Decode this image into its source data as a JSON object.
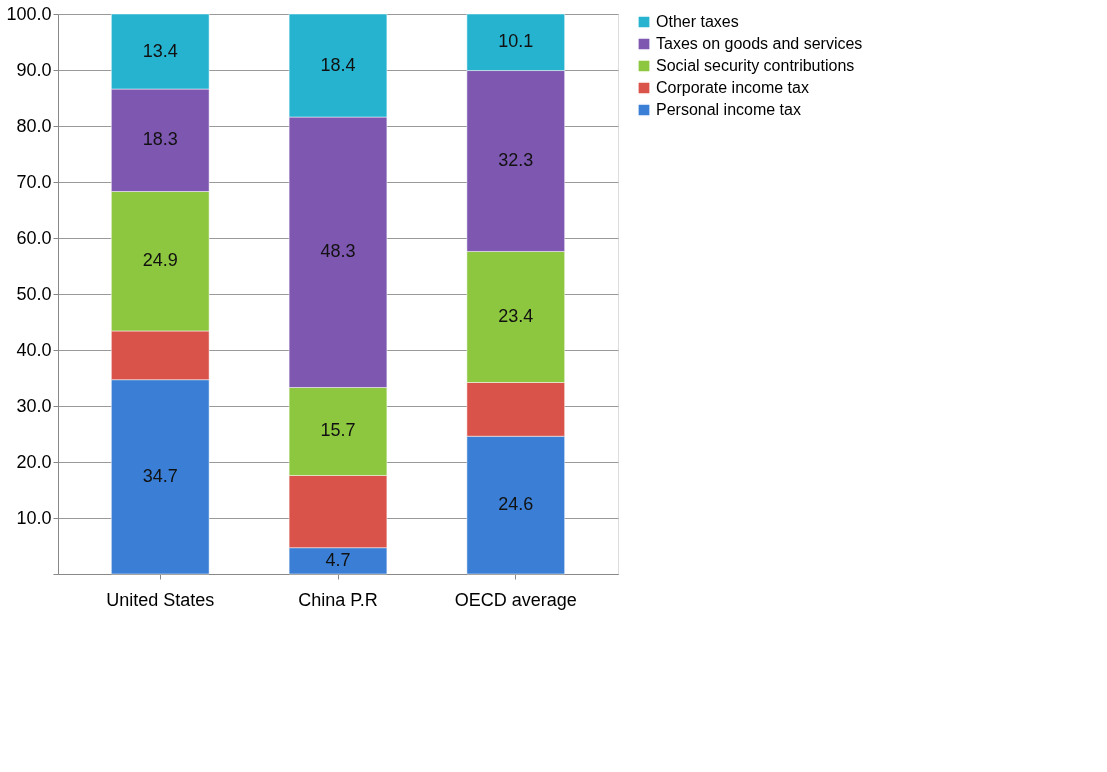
{
  "chart_data": {
    "type": "bar",
    "stacked": true,
    "categories": [
      "United States",
      "China P.R",
      "OECD average"
    ],
    "series": [
      {
        "name": "Personal income tax",
        "color": "#3a7fd5",
        "values": [
          34.7,
          4.7,
          24.6
        ],
        "value_labels": [
          "34.7",
          "4.7",
          "24.6"
        ]
      },
      {
        "name": "Corporate income tax",
        "color": "#d9534a",
        "values": [
          8.7,
          12.9,
          9.6
        ],
        "value_labels": [
          null,
          null,
          null
        ]
      },
      {
        "name": "Social security contributions",
        "color": "#8dc63f",
        "values": [
          24.9,
          15.7,
          23.4
        ],
        "value_labels": [
          "24.9",
          "15.7",
          "23.4"
        ]
      },
      {
        "name": "Taxes on goods and services",
        "color": "#7e57b0",
        "values": [
          18.3,
          48.3,
          32.3
        ],
        "value_labels": [
          "18.3",
          "48.3",
          "32.3"
        ]
      },
      {
        "name": "Other taxes",
        "color": "#26b3d0",
        "values": [
          13.4,
          18.4,
          10.1
        ],
        "value_labels": [
          "13.4",
          "18.4",
          "10.1"
        ]
      }
    ],
    "ylim": [
      0,
      100
    ],
    "yticks": [
      {
        "value": 0,
        "label": null
      },
      {
        "value": 10,
        "label": "10.0"
      },
      {
        "value": 20,
        "label": "20.0"
      },
      {
        "value": 30,
        "label": "30.0"
      },
      {
        "value": 40,
        "label": "40.0"
      },
      {
        "value": 50,
        "label": "50.0"
      },
      {
        "value": 60,
        "label": "60.0"
      },
      {
        "value": 70,
        "label": "70.0"
      },
      {
        "value": 80,
        "label": "80.0"
      },
      {
        "value": 90,
        "label": "90.0"
      },
      {
        "value": 100,
        "label": "100.0"
      }
    ],
    "grid": "y",
    "legend": "right"
  }
}
